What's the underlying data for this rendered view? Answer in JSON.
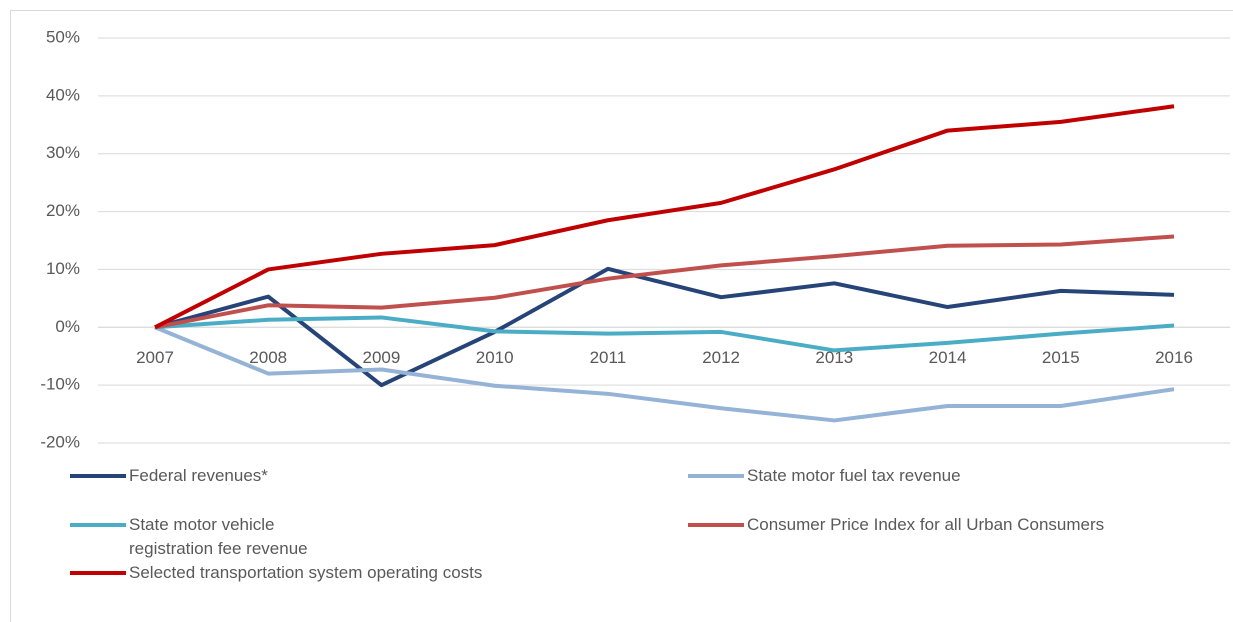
{
  "chart_data": {
    "type": "line",
    "categories": [
      "2007",
      "2008",
      "2009",
      "2010",
      "2011",
      "2012",
      "2013",
      "2014",
      "2015",
      "2016"
    ],
    "series": [
      {
        "name": "Federal revenues*",
        "color": "#264478",
        "values": [
          0,
          5.3,
          -10,
          -0.8,
          10.1,
          5.2,
          7.6,
          3.5,
          6.3,
          5.6
        ]
      },
      {
        "name": "State motor fuel tax revenue",
        "color": "#95b3d7",
        "values": [
          0,
          -8,
          -7.3,
          -10.1,
          -11.5,
          -14,
          -16.1,
          -13.6,
          -13.6,
          -10.7
        ]
      },
      {
        "name": "State motor vehicle registration fee revenue",
        "color": "#4bacc6",
        "values": [
          0,
          1.3,
          1.7,
          -0.7,
          -1.1,
          -0.8,
          -4,
          -2.7,
          -1.1,
          0.3
        ]
      },
      {
        "name": "Consumer Price Index for all Urban Consumers",
        "color": "#c0504d",
        "values": [
          0,
          3.8,
          3.4,
          5.1,
          8.4,
          10.7,
          12.3,
          14.1,
          14.3,
          15.7
        ]
      },
      {
        "name": "Selected transportation system operating costs",
        "color": "#c00000",
        "values": [
          0,
          10,
          12.7,
          14.2,
          18.5,
          21.5,
          27.3,
          34,
          35.5,
          38.2
        ]
      }
    ],
    "ylim": [
      -20,
      50
    ],
    "yticks": [
      {
        "value": -20,
        "label": "-20%"
      },
      {
        "value": -10,
        "label": "-10%"
      },
      {
        "value": 0,
        "label": "0%"
      },
      {
        "value": 10,
        "label": "10%"
      },
      {
        "value": 20,
        "label": "20%"
      },
      {
        "value": 30,
        "label": "30%"
      },
      {
        "value": 40,
        "label": "40%"
      },
      {
        "value": 50,
        "label": "50%"
      }
    ],
    "grid": true
  }
}
